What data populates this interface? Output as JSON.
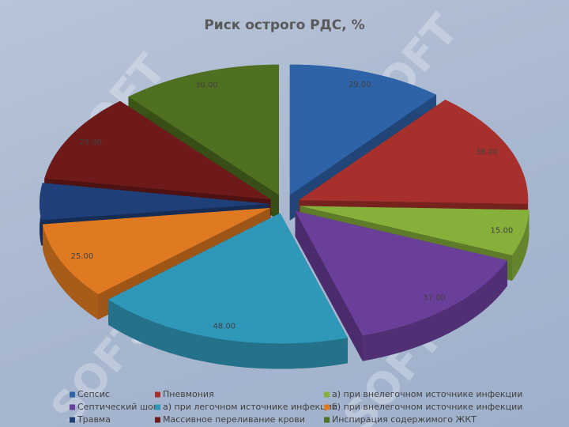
{
  "chart_data": {
    "type": "pie",
    "title": "Риск острого РДС, %",
    "watermark": "SOFT",
    "categories": [
      "Сепсис",
      "Пневмония",
      "а) при внелегочном источнике инфекции",
      "Септический шок",
      "а) при легочном источнике инфекции",
      "б) при внелегочном источнике инфекции",
      "Травма",
      "Массивное переливание крови",
      "Инспирация содержимого ЖКТ"
    ],
    "values": [
      29,
      38,
      15,
      37,
      48,
      25,
      12,
      29,
      30
    ],
    "value_labels": [
      "29.00",
      "38.00",
      "15.00",
      "37.00",
      "48.00",
      "25.00",
      null,
      "29.00",
      "30.00"
    ],
    "colors": [
      "#2e63a8",
      "#a8302c",
      "#86b03a",
      "#6a3f9a",
      "#2f98b8",
      "#e07a22",
      "#1f3f78",
      "#6f1a1a",
      "#4f7020"
    ]
  }
}
